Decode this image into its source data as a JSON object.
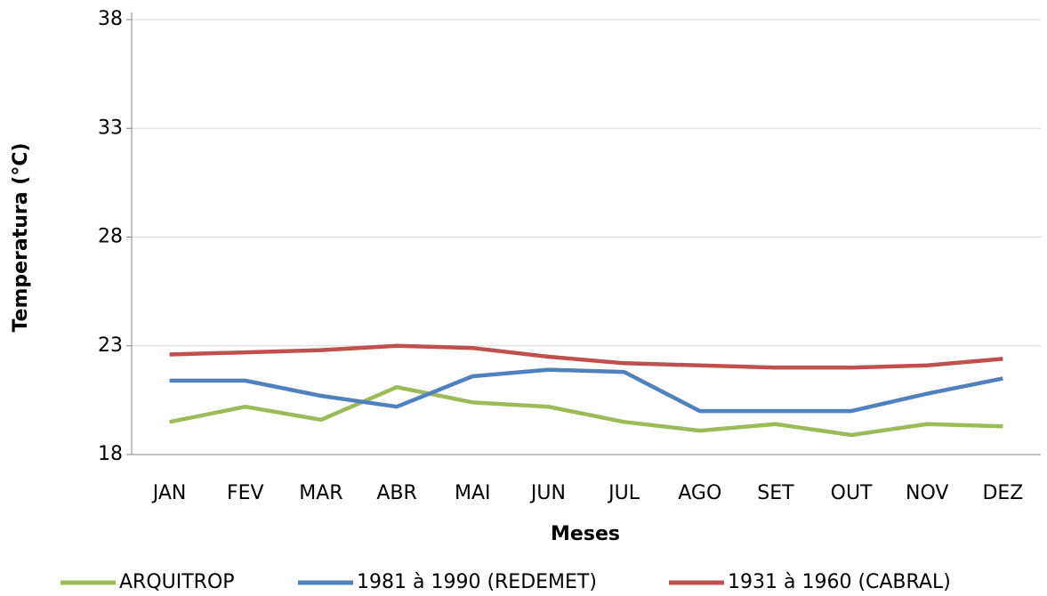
{
  "chart_data": {
    "type": "line",
    "x_label": "Meses",
    "y_label": "Temperatura (°C)",
    "categories": [
      "JAN",
      "FEV",
      "MAR",
      "ABR",
      "MAI",
      "JUN",
      "JUL",
      "AGO",
      "SET",
      "OUT",
      "NOV",
      "DEZ"
    ],
    "series": [
      {
        "name": "ARQUITROP",
        "color": "#9bbb59",
        "values": [
          19.5,
          20.2,
          19.6,
          21.1,
          20.4,
          20.2,
          19.5,
          19.1,
          19.4,
          18.9,
          19.4,
          19.3
        ]
      },
      {
        "name": "1981 à 1990 (REDEMET)",
        "color": "#4f81bd",
        "values": [
          21.4,
          21.4,
          20.7,
          20.2,
          21.6,
          21.9,
          21.8,
          20.0,
          20.0,
          20.0,
          20.8,
          21.5
        ]
      },
      {
        "name": "1931 à 1960 (CABRAL)",
        "color": "#c0504d",
        "values": [
          22.6,
          22.7,
          22.8,
          23.0,
          22.9,
          22.5,
          22.2,
          22.1,
          22.0,
          22.0,
          22.1,
          22.4
        ]
      }
    ],
    "ylim": [
      18,
      38
    ],
    "yticks": [
      18,
      23,
      28,
      33,
      38
    ],
    "grid": true,
    "legend": "bottom"
  }
}
